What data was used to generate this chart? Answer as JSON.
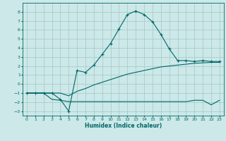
{
  "xlabel": "Humidex (Indice chaleur)",
  "bg_color": "#cce8e8",
  "grid_color": "#aacccc",
  "line_color": "#006666",
  "ylim": [
    -3.5,
    9.0
  ],
  "xlim": [
    -0.5,
    23.5
  ],
  "yticks": [
    -3,
    -2,
    -1,
    0,
    1,
    2,
    3,
    4,
    5,
    6,
    7,
    8
  ],
  "xticks": [
    0,
    1,
    2,
    3,
    4,
    5,
    6,
    7,
    8,
    9,
    10,
    11,
    12,
    13,
    14,
    15,
    16,
    17,
    18,
    19,
    20,
    21,
    22,
    23
  ],
  "series1_x": [
    0,
    1,
    2,
    3,
    4,
    5,
    6,
    7,
    8,
    9,
    10,
    11,
    12,
    13,
    14,
    15,
    16,
    17,
    18,
    19,
    20,
    21,
    22,
    23
  ],
  "series1_y": [
    -1,
    -1,
    -1,
    -1,
    -1.7,
    -3.0,
    1.5,
    1.3,
    2.1,
    3.3,
    4.5,
    6.1,
    7.7,
    8.1,
    7.7,
    6.9,
    5.5,
    3.9,
    2.6,
    2.6,
    2.5,
    2.6,
    2.5,
    2.5
  ],
  "series2_x": [
    0,
    1,
    2,
    3,
    4,
    5,
    6,
    7,
    8,
    9,
    10,
    11,
    12,
    13,
    14,
    15,
    16,
    17,
    18,
    19,
    20,
    21,
    22,
    23
  ],
  "series2_y": [
    -1,
    -1,
    -1,
    -1,
    -1,
    -1.3,
    -0.8,
    -0.5,
    -0.1,
    0.2,
    0.5,
    0.8,
    1.1,
    1.3,
    1.5,
    1.7,
    1.9,
    2.0,
    2.1,
    2.2,
    2.3,
    2.35,
    2.4,
    2.4
  ],
  "series3_x": [
    0,
    1,
    2,
    3,
    4,
    5,
    6,
    7,
    8,
    9,
    10,
    11,
    12,
    13,
    14,
    15,
    16,
    17,
    18,
    19,
    20,
    21,
    22,
    23
  ],
  "series3_y": [
    -1,
    -1,
    -1,
    -1.7,
    -1.8,
    -1.95,
    -1.95,
    -1.95,
    -1.95,
    -1.95,
    -1.95,
    -1.95,
    -1.95,
    -1.95,
    -1.95,
    -1.95,
    -1.95,
    -1.95,
    -1.95,
    -1.95,
    -1.8,
    -1.8,
    -2.3,
    -1.8
  ]
}
